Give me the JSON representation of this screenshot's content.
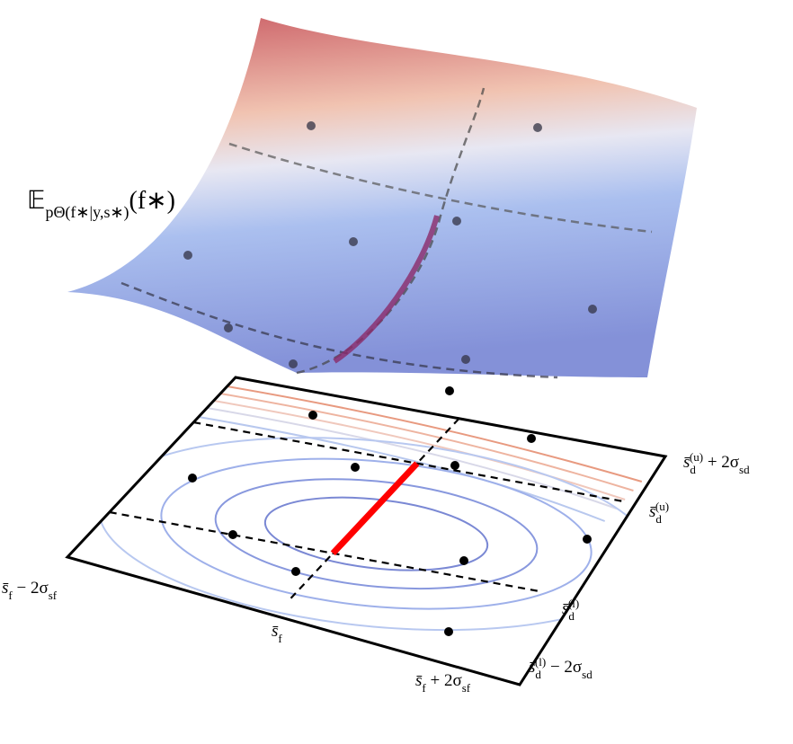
{
  "surface_label": {
    "segments": [
      {
        "text": "𝔼",
        "pos": "base"
      },
      {
        "text": "pΘ(f∗|y,s∗)",
        "pos": "sub"
      },
      {
        "text": "(f∗)",
        "pos": "base"
      }
    ]
  },
  "axis_labels": [
    {
      "segments": [
        {
          "text": "s̄",
          "pos": "base"
        },
        {
          "text": "f",
          "pos": "sub"
        },
        {
          "text": " − 2σ",
          "pos": "base"
        },
        {
          "text": "sf",
          "pos": "sub"
        }
      ]
    },
    {
      "segments": [
        {
          "text": "s̄",
          "pos": "base"
        },
        {
          "text": "f",
          "pos": "sub"
        }
      ]
    },
    {
      "segments": [
        {
          "text": "s̄",
          "pos": "base"
        },
        {
          "text": "f",
          "pos": "sub"
        },
        {
          "text": " + 2σ",
          "pos": "base"
        },
        {
          "text": "sf",
          "pos": "sub"
        }
      ]
    },
    {
      "segments": [
        {
          "text": "s̄",
          "pos": "base"
        },
        {
          "text": "d",
          "pos": "sub"
        },
        {
          "text": "(u)",
          "pos": "sup"
        },
        {
          "text": " + 2σ",
          "pos": "base"
        },
        {
          "text": "sd",
          "pos": "sub"
        }
      ]
    },
    {
      "segments": [
        {
          "text": "s̄",
          "pos": "base"
        },
        {
          "text": "d",
          "pos": "sub"
        },
        {
          "text": "(u)",
          "pos": "sup"
        }
      ]
    },
    {
      "segments": [
        {
          "text": "s̄",
          "pos": "base"
        },
        {
          "text": "d",
          "pos": "sub"
        },
        {
          "text": "(l)",
          "pos": "sup"
        }
      ]
    },
    {
      "segments": [
        {
          "text": "s̄",
          "pos": "base"
        },
        {
          "text": "d",
          "pos": "sub"
        },
        {
          "text": "(l)",
          "pos": "sup"
        },
        {
          "text": " − 2σ",
          "pos": "base"
        },
        {
          "text": "sd",
          "pos": "sub"
        }
      ]
    }
  ]
}
